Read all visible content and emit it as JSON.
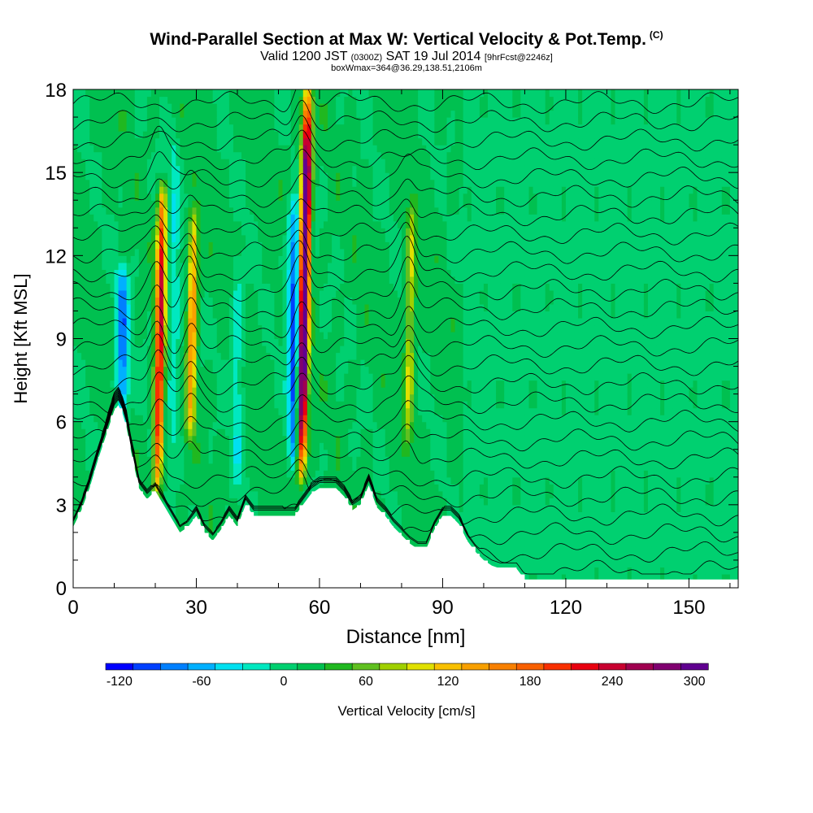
{
  "title": "Wind-Parallel Section at Max W: Vertical Velocity & Pot.Temp.",
  "copyright": "(C)",
  "subtitle_pre": "Valid 1200 JST",
  "subtitle_utc": "(0300Z)",
  "subtitle_mid": "SAT 19 Jul 2014",
  "subtitle_fcst": "[9hrFcst@2246z]",
  "subtitle2": "boxWmax=364@36.29,138.51,2106m",
  "chart_data": {
    "type": "heatmap",
    "xlabel": "Distance [nm]",
    "ylabel": "Height [Kft MSL]",
    "xlim": [
      0,
      162
    ],
    "ylim": [
      0,
      18
    ],
    "x_ticks": [
      "0",
      "30",
      "60",
      "90",
      "120",
      "150"
    ],
    "y_ticks": [
      "0",
      "3",
      "6",
      "9",
      "12",
      "15",
      "18"
    ],
    "colorbar": {
      "label": "Vertical Velocity [cm/s]",
      "tick_labels": [
        "-120",
        "-60",
        "0",
        "60",
        "120",
        "180",
        "240",
        "300"
      ],
      "colors": [
        "#0000ff",
        "#0040ff",
        "#0080ff",
        "#00b0ff",
        "#00e0f0",
        "#00e8c0",
        "#00d070",
        "#00c050",
        "#20b820",
        "#60c020",
        "#a0d000",
        "#e0e000",
        "#f8c000",
        "#f8a000",
        "#f88000",
        "#f86000",
        "#f83000",
        "#e80010",
        "#c80030",
        "#a00050",
        "#800070",
        "#600090"
      ]
    },
    "terrain": {
      "x": [
        0,
        2,
        4,
        6,
        8,
        10,
        11,
        12,
        13,
        14,
        15,
        16,
        18,
        20,
        22,
        24,
        26,
        28,
        30,
        32,
        34,
        36,
        38,
        40,
        42,
        44,
        46,
        48,
        50,
        52,
        54,
        56,
        58,
        60,
        62,
        64,
        66,
        68,
        70,
        72,
        74,
        76,
        78,
        80,
        82,
        84,
        86,
        88,
        90,
        92,
        94,
        96,
        98,
        100,
        102,
        104,
        106,
        108,
        110,
        112,
        114,
        116,
        118,
        120,
        140,
        162
      ],
      "height_kft": [
        2.2,
        2.8,
        3.6,
        4.6,
        5.5,
        6.4,
        6.6,
        6.3,
        5.8,
        5.0,
        4.3,
        3.6,
        3.2,
        3.5,
        3.0,
        2.5,
        2.0,
        2.2,
        2.6,
        2.0,
        1.7,
        2.1,
        2.6,
        2.2,
        3.0,
        2.6,
        2.6,
        2.6,
        2.6,
        2.6,
        2.6,
        3.0,
        3.4,
        3.6,
        3.6,
        3.6,
        3.3,
        2.8,
        3.0,
        3.7,
        2.9,
        2.6,
        2.2,
        1.9,
        1.6,
        1.4,
        1.4,
        2.1,
        2.6,
        2.6,
        2.3,
        1.7,
        1.3,
        1.0,
        0.8,
        0.7,
        0.7,
        0.7,
        0.3,
        0.3,
        0.3,
        0.3,
        0.3,
        0.3,
        0.3,
        0.3
      ]
    },
    "updraft_cores": [
      {
        "x": 20.5,
        "y_bottom": 3.5,
        "y_top": 14.5,
        "peak_cm_s": 220
      },
      {
        "x": 28.5,
        "y_bottom": 5.5,
        "y_top": 13.5,
        "peak_cm_s": 140
      },
      {
        "x": 55.5,
        "y_bottom": 4.0,
        "y_top": 18.0,
        "peak_cm_s": 364
      },
      {
        "x": 81.5,
        "y_bottom": 5.0,
        "y_top": 14.0,
        "peak_cm_s": 80
      }
    ],
    "downdraft_cores": [
      {
        "x": 12.0,
        "y_bottom": 6.2,
        "y_top": 11.5,
        "peak_cm_s": -100
      },
      {
        "x": 24.5,
        "y_bottom": 4.5,
        "y_top": 17.0,
        "peak_cm_s": -40
      },
      {
        "x": 53.8,
        "y_bottom": 4.5,
        "y_top": 14.0,
        "peak_cm_s": -120
      },
      {
        "x": 40.0,
        "y_bottom": 3.5,
        "y_top": 12.0,
        "peak_cm_s": -40
      }
    ],
    "isentrope_count": 26
  }
}
